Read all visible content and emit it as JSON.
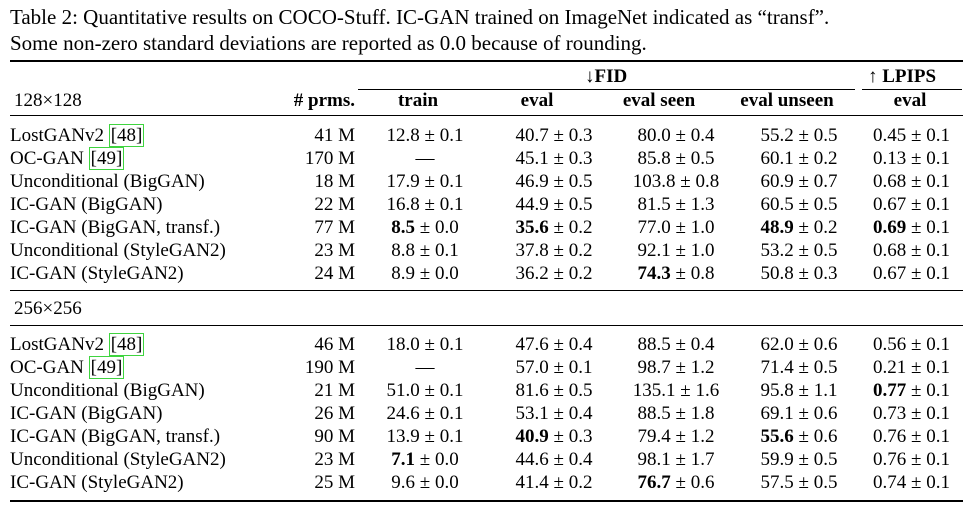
{
  "caption": {
    "line1": "Table 2: Quantitative results on COCO-Stuff. IC-GAN trained on ImageNet indicated as “transf”.",
    "line2": "Some non-zero standard deviations are reported as 0.0 because of rounding."
  },
  "header": {
    "fid_group": "↓FID",
    "lpips_group": "↑ LPIPS",
    "resolution": "128×128",
    "params": "# prms.",
    "train": "train",
    "eval": "eval",
    "eval_seen": "eval seen",
    "eval_unseen": "eval unseen",
    "lpips_eval": "eval"
  },
  "sections": [
    {
      "title": "128×128",
      "rows": [
        {
          "model": "LostGANv2",
          "cite": "48",
          "params": "41 M",
          "cells": [
            [
              "12.8",
              "± 0.1",
              false
            ],
            [
              "40.7",
              "± 0.3",
              false
            ],
            [
              "80.0",
              "± 0.4",
              false
            ],
            [
              "55.2",
              "± 0.5",
              false
            ],
            [
              "0.45",
              "± 0.1",
              false
            ]
          ]
        },
        {
          "model": "OC-GAN",
          "cite": "49",
          "params": "170 M",
          "cells": [
            [
              "—",
              "",
              false
            ],
            [
              "45.1",
              "± 0.3",
              false
            ],
            [
              "85.8",
              "± 0.5",
              false
            ],
            [
              "60.1",
              "± 0.2",
              false
            ],
            [
              "0.13",
              "± 0.1",
              false
            ]
          ]
        },
        {
          "model": "Unconditional (BigGAN)",
          "cite": "",
          "params": "18 M",
          "cells": [
            [
              "17.9",
              "± 0.1",
              false
            ],
            [
              "46.9",
              "± 0.5",
              false
            ],
            [
              "103.8",
              "± 0.8",
              false
            ],
            [
              "60.9",
              "± 0.7",
              false
            ],
            [
              "0.68",
              "± 0.1",
              false
            ]
          ]
        },
        {
          "model": "IC-GAN (BigGAN)",
          "cite": "",
          "params": "22 M",
          "cells": [
            [
              "16.8",
              "± 0.1",
              false
            ],
            [
              "44.9",
              "± 0.5",
              false
            ],
            [
              "81.5",
              "± 1.3",
              false
            ],
            [
              "60.5",
              "± 0.5",
              false
            ],
            [
              "0.67",
              "± 0.1",
              false
            ]
          ]
        },
        {
          "model": "IC-GAN (BigGAN, transf.)",
          "cite": "",
          "params": "77 M",
          "cells": [
            [
              "8.5",
              "± 0.0",
              true
            ],
            [
              "35.6",
              "± 0.2",
              true
            ],
            [
              "77.0",
              "± 1.0",
              false
            ],
            [
              "48.9",
              "± 0.2",
              true
            ],
            [
              "0.69",
              "± 0.1",
              true
            ]
          ]
        },
        {
          "model": "Unconditional (StyleGAN2)",
          "cite": "",
          "params": "23 M",
          "cells": [
            [
              "8.8",
              "± 0.1",
              false
            ],
            [
              "37.8",
              "± 0.2",
              false
            ],
            [
              "92.1",
              "± 1.0",
              false
            ],
            [
              "53.2",
              "± 0.5",
              false
            ],
            [
              "0.68",
              "± 0.1",
              false
            ]
          ]
        },
        {
          "model": "IC-GAN (StyleGAN2)",
          "cite": "",
          "params": "24 M",
          "cells": [
            [
              "8.9",
              "± 0.0",
              false
            ],
            [
              "36.2",
              "± 0.2",
              false
            ],
            [
              "74.3",
              "± 0.8",
              true
            ],
            [
              "50.8",
              "± 0.3",
              false
            ],
            [
              "0.67",
              "± 0.1",
              false
            ]
          ]
        }
      ]
    },
    {
      "title": "256×256",
      "rows": [
        {
          "model": "LostGANv2",
          "cite": "48",
          "params": "46 M",
          "cells": [
            [
              "18.0",
              "± 0.1",
              false
            ],
            [
              "47.6",
              "± 0.4",
              false
            ],
            [
              "88.5",
              "± 0.4",
              false
            ],
            [
              "62.0",
              "± 0.6",
              false
            ],
            [
              "0.56",
              "± 0.1",
              false
            ]
          ]
        },
        {
          "model": "OC-GAN",
          "cite": "49",
          "params": "190 M",
          "cells": [
            [
              "—",
              "",
              false
            ],
            [
              "57.0",
              "± 0.1",
              false
            ],
            [
              "98.7",
              "± 1.2",
              false
            ],
            [
              "71.4",
              "± 0.5",
              false
            ],
            [
              "0.21",
              "± 0.1",
              false
            ]
          ]
        },
        {
          "model": "Unconditional (BigGAN)",
          "cite": "",
          "params": "21 M",
          "cells": [
            [
              "51.0",
              "± 0.1",
              false
            ],
            [
              "81.6",
              "± 0.5",
              false
            ],
            [
              "135.1",
              "± 1.6",
              false
            ],
            [
              "95.8",
              "± 1.1",
              false
            ],
            [
              "0.77",
              "± 0.1",
              true
            ]
          ]
        },
        {
          "model": "IC-GAN (BigGAN)",
          "cite": "",
          "params": "26 M",
          "cells": [
            [
              "24.6",
              "± 0.1",
              false
            ],
            [
              "53.1",
              "± 0.4",
              false
            ],
            [
              "88.5",
              "± 1.8",
              false
            ],
            [
              "69.1",
              "± 0.6",
              false
            ],
            [
              "0.73",
              "± 0.1",
              false
            ]
          ]
        },
        {
          "model": "IC-GAN (BigGAN, transf.)",
          "cite": "",
          "params": "90 M",
          "cells": [
            [
              "13.9",
              "± 0.1",
              false
            ],
            [
              "40.9",
              "± 0.3",
              true
            ],
            [
              "79.4",
              "± 1.2",
              false
            ],
            [
              "55.6",
              "± 0.6",
              true
            ],
            [
              "0.76",
              "± 0.1",
              false
            ]
          ]
        },
        {
          "model": "Unconditional (StyleGAN2)",
          "cite": "",
          "params": "23 M",
          "cells": [
            [
              "7.1",
              "± 0.0",
              true
            ],
            [
              "44.6",
              "± 0.4",
              false
            ],
            [
              "98.1",
              "± 1.7",
              false
            ],
            [
              "59.9",
              "± 0.5",
              false
            ],
            [
              "0.76",
              "± 0.1",
              false
            ]
          ]
        },
        {
          "model": "IC-GAN (StyleGAN2)",
          "cite": "",
          "params": "25 M",
          "cells": [
            [
              "9.6",
              "± 0.0",
              false
            ],
            [
              "41.4",
              "± 0.2",
              false
            ],
            [
              "76.7",
              "± 0.6",
              true
            ],
            [
              "57.5",
              "± 0.5",
              false
            ],
            [
              "0.74",
              "± 0.1",
              false
            ]
          ]
        }
      ]
    }
  ],
  "colors": {
    "citation_box": "#3fd43f"
  }
}
